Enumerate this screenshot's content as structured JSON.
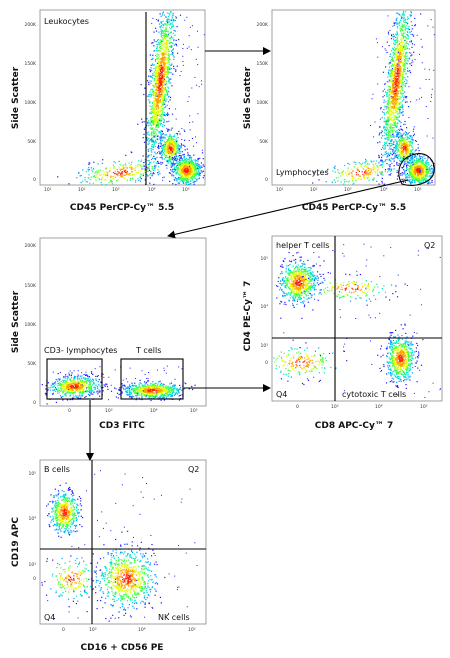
{
  "plots": [
    {
      "id": "p1",
      "xlabel": "CD45 PerCP-Cy™ 5.5",
      "ylabel": "Side Scatter",
      "xticks": [
        "10¹",
        "10²",
        "10³",
        "10⁴",
        "10⁵"
      ],
      "yticks": [
        "0",
        "50K",
        "100K",
        "150K",
        "200K"
      ],
      "labels": [
        "Leukocytes"
      ]
    },
    {
      "id": "p2",
      "xlabel": "CD45 PerCP-Cy™ 5.5",
      "ylabel": "Side Scatter",
      "xticks": [
        "10¹",
        "10²",
        "10³",
        "10⁴",
        "10⁵"
      ],
      "yticks": [
        "0",
        "50K",
        "100K",
        "150K",
        "200K"
      ],
      "labels": [
        "Lymphocytes"
      ]
    },
    {
      "id": "p3",
      "xlabel": "CD3 FITC",
      "ylabel": "Side Scatter",
      "xticks": [
        "0",
        "10³",
        "10⁴",
        "10⁵"
      ],
      "yticks": [
        "0",
        "50K",
        "100K",
        "150K",
        "200K"
      ],
      "labels": [
        "CD3- lymphocytes",
        "T cells"
      ]
    },
    {
      "id": "p4",
      "xlabel": "CD8 APC-Cy™ 7",
      "ylabel": "CD4 PE-Cy™ 7",
      "xticks": [
        "0",
        "10³",
        "10⁴",
        "10⁵"
      ],
      "yticks": [
        "10³",
        "0",
        "10⁴",
        "10⁵"
      ],
      "labels": [
        "helper T cells",
        "Q2",
        "Q4",
        "cytotoxic T cells"
      ]
    },
    {
      "id": "p5",
      "xlabel": "CD16 + CD56 PE",
      "ylabel": "CD19 APC",
      "xticks": [
        "0",
        "10³",
        "10⁴",
        "10⁵"
      ],
      "yticks": [
        "10³",
        "0",
        "10⁴",
        "10⁵"
      ],
      "labels": [
        "B cells",
        "Q2",
        "Q4",
        "NK cells"
      ]
    }
  ]
}
